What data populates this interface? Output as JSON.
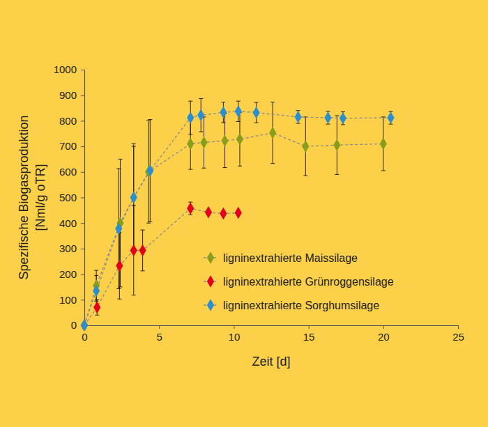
{
  "chart_data": {
    "type": "line",
    "x_label": "Zeit [d]",
    "y_label": [
      "Spezifische Biogasproduktion",
      "[Nml/g oTR]"
    ],
    "xlim": [
      0,
      25
    ],
    "xticks": [
      0,
      5,
      10,
      15,
      20,
      25
    ],
    "ylim": [
      0,
      1000
    ],
    "yticks": [
      0,
      100,
      200,
      300,
      400,
      500,
      600,
      700,
      800,
      900,
      1000
    ],
    "legend": "lower right",
    "marker": "diamond",
    "line_style": "dashed",
    "series": [
      {
        "name": "ligninextrahierte Maissilage",
        "color": "#8a9e1c",
        "x": [
          0,
          0.8,
          2.4,
          3.3,
          4.3,
          7.1,
          8.0,
          9.4,
          10.4,
          12.6,
          14.8,
          16.9,
          20.0
        ],
        "values": [
          0,
          155,
          400,
          500,
          600,
          710,
          715,
          722,
          728,
          753,
          700,
          705,
          710
        ],
        "errors": [
          0,
          60,
          250,
          210,
          200,
          100,
          100,
          105,
          105,
          120,
          115,
          115,
          105
        ]
      },
      {
        "name": "ligninextrahierte Grünroggensilage",
        "color": "#e2001a",
        "x": [
          0,
          0.85,
          2.35,
          3.3,
          3.9,
          7.1,
          8.3,
          9.3,
          10.3
        ],
        "values": [
          0,
          70,
          233,
          293,
          293,
          457,
          442,
          437,
          440
        ],
        "errors": [
          0,
          30,
          130,
          175,
          80,
          25,
          null,
          null,
          null
        ]
      },
      {
        "name": "ligninextrahierte Sorghumsilage",
        "color": "#2b8fcf",
        "x": [
          0,
          0.8,
          2.3,
          3.3,
          4.4,
          7.1,
          7.8,
          9.3,
          10.3,
          11.5,
          14.3,
          16.3,
          17.3,
          20.5
        ],
        "values": [
          0,
          135,
          378,
          500,
          605,
          812,
          822,
          833,
          837,
          832,
          815,
          812,
          810,
          812
        ],
        "errors": [
          0,
          60,
          235,
          200,
          200,
          65,
          65,
          40,
          40,
          40,
          25,
          25,
          25,
          25
        ]
      }
    ]
  }
}
